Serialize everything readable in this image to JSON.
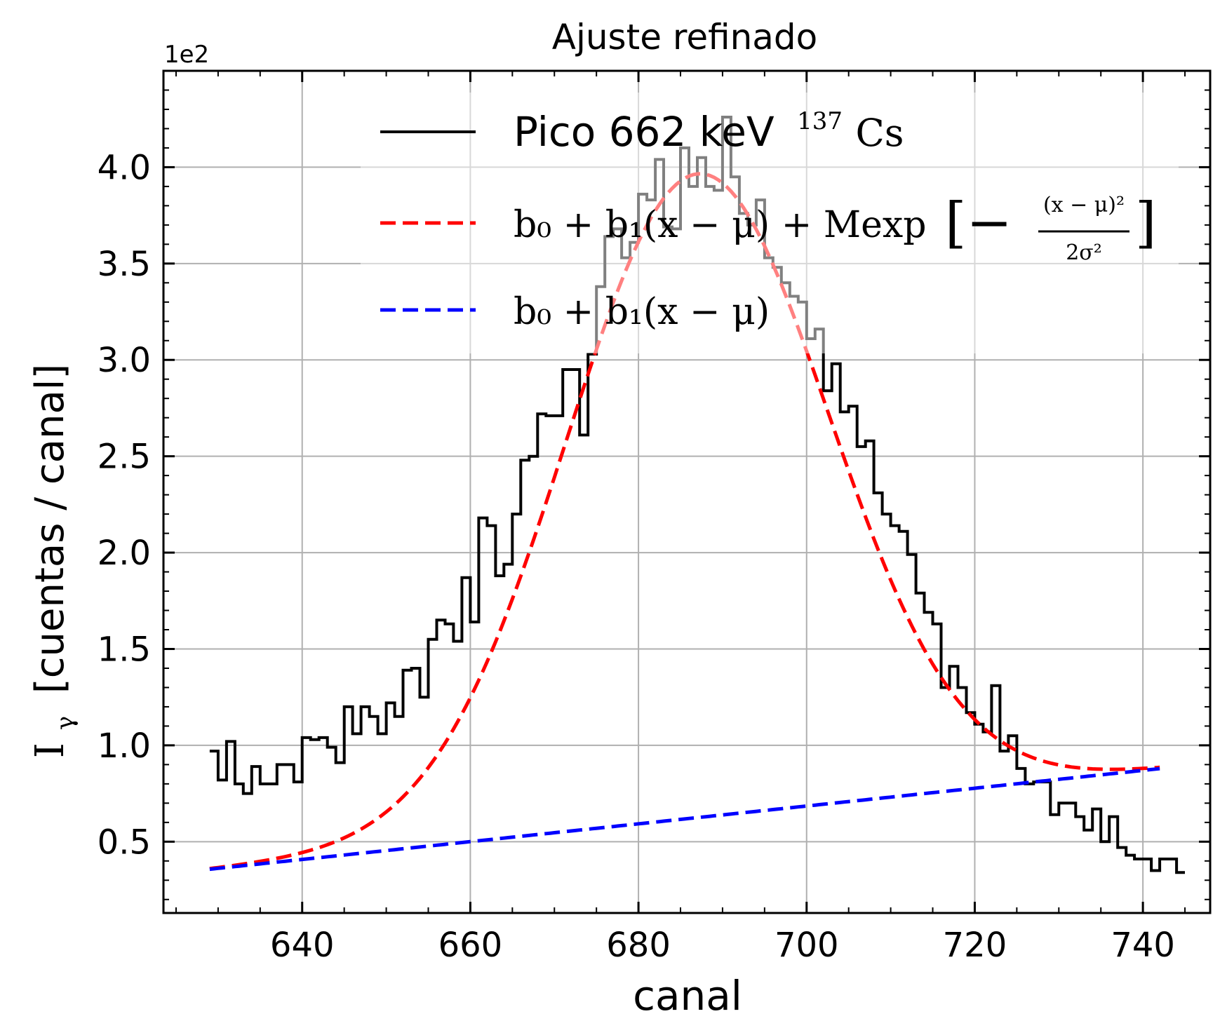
{
  "chart_data": {
    "type": "line",
    "title": "Ajuste refinado",
    "xlabel": "canal",
    "ylabel": "[cuentas / canal]",
    "ylabel_symbol": "I",
    "ylabel_subscript": "γ",
    "y_offset_label": "1e2",
    "xlim": [
      623.5,
      748
    ],
    "ylim": [
      0.13,
      4.5
    ],
    "x_ticks": [
      640,
      660,
      680,
      700,
      720,
      740
    ],
    "y_ticks": [
      0.5,
      1.0,
      1.5,
      2.0,
      2.5,
      3.0,
      3.5,
      4.0
    ],
    "x_tick_labels": [
      "640",
      "660",
      "680",
      "700",
      "720",
      "740"
    ],
    "y_tick_labels": [
      "0.5",
      "1.0",
      "1.5",
      "2.0",
      "2.5",
      "3.0",
      "3.5",
      "4.0"
    ],
    "grid": true,
    "legend_position": "top",
    "legend": {
      "data_label": "Pico 662 keV",
      "data_label_sup": "137",
      "data_label_elem": "Cs",
      "fit_label": "b₀ + b₁(x − μ) + Mexp",
      "fit_frac_num": "(x − μ)²",
      "fit_frac_den": "2σ²",
      "background_label": "b₀ + b₁(x − μ)"
    },
    "series": [
      {
        "name": "Pico 662 keV 137Cs",
        "kind": "step",
        "color": "#000000",
        "x_start": 629,
        "x_end": 742,
        "values": [
          0.97,
          0.82,
          1.02,
          0.8,
          0.75,
          0.89,
          0.8,
          0.8,
          0.9,
          0.9,
          0.81,
          1.04,
          1.03,
          1.04,
          0.99,
          0.91,
          1.2,
          1.06,
          1.2,
          1.15,
          1.06,
          1.22,
          1.15,
          1.39,
          1.4,
          1.25,
          1.55,
          1.65,
          1.63,
          1.54,
          1.87,
          1.64,
          2.18,
          2.14,
          1.88,
          1.94,
          2.2,
          2.48,
          2.5,
          2.72,
          2.71,
          2.71,
          2.95,
          2.95,
          2.61,
          3.03,
          3.38,
          3.64,
          3.68,
          3.53,
          3.61,
          3.86,
          3.83,
          4.04,
          3.69,
          3.68,
          4.1,
          3.9,
          4.05,
          3.9,
          3.88,
          4.26,
          3.95,
          3.76,
          3.7,
          3.83,
          3.53,
          3.48,
          3.4,
          3.33,
          3.3,
          3.11,
          3.16,
          2.84,
          2.98,
          2.73,
          2.76,
          2.55,
          2.58,
          2.31,
          2.2,
          2.14,
          2.11,
          1.99,
          1.79,
          1.69,
          1.63,
          1.3,
          1.41,
          1.3,
          1.17,
          1.11,
          1.07,
          1.31,
          0.97,
          1.05,
          0.88,
          0.8,
          0.81,
          0.81,
          0.64,
          0.7,
          0.7,
          0.63,
          0.56,
          0.67,
          0.5,
          0.63,
          0.47,
          0.43,
          0.41,
          0.41,
          0.35,
          0.41,
          0.41,
          0.34
        ]
      },
      {
        "name": "b₀ + b₁(x − μ) + Mexp",
        "kind": "dashed",
        "color": "#ff0000",
        "function": "gaussian_plus_linear",
        "x_range": [
          629,
          742
        ],
        "params": {
          "b0": 0.625,
          "b1": 0.00462,
          "mu": 687.0,
          "M": 3.34,
          "sigma": 15.6
        }
      },
      {
        "name": "b₀ + b₁(x − μ)",
        "kind": "dashed",
        "color": "#0000ff",
        "function": "linear",
        "x_range": [
          629,
          742
        ],
        "params": {
          "b0": 0.625,
          "b1": 0.00462,
          "mu": 687.0
        }
      }
    ]
  }
}
